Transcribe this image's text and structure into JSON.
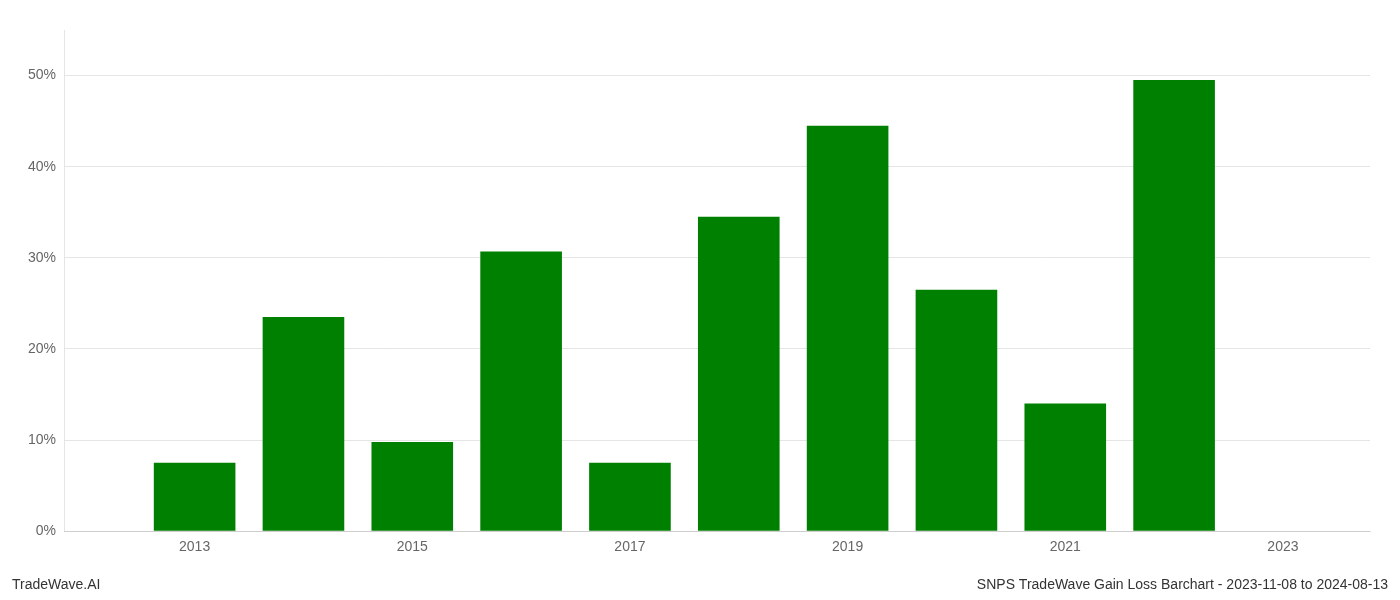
{
  "chart_data": {
    "type": "bar",
    "x": [
      2013,
      2014,
      2015,
      2016,
      2017,
      2018,
      2019,
      2020,
      2021,
      2022
    ],
    "values": [
      7.5,
      23.5,
      9.8,
      30.7,
      7.5,
      34.5,
      44.5,
      26.5,
      14.0,
      49.5
    ],
    "color": "#008000",
    "xlim": [
      2011.8,
      2023.8
    ],
    "xticks": [
      2013,
      2015,
      2017,
      2019,
      2021,
      2023
    ],
    "ylim": [
      0,
      55
    ],
    "yticks": [
      {
        "value": 0,
        "label": "0%"
      },
      {
        "value": 10,
        "label": "10%"
      },
      {
        "value": 20,
        "label": "20%"
      },
      {
        "value": 30,
        "label": "30%"
      },
      {
        "value": 40,
        "label": "40%"
      },
      {
        "value": 50,
        "label": "50%"
      }
    ],
    "grid": true,
    "annotations": [
      "TradeWave.AI",
      "SNPS TradeWave Gain Loss Barchart - 2023-11-08 to 2024-08-13"
    ]
  }
}
